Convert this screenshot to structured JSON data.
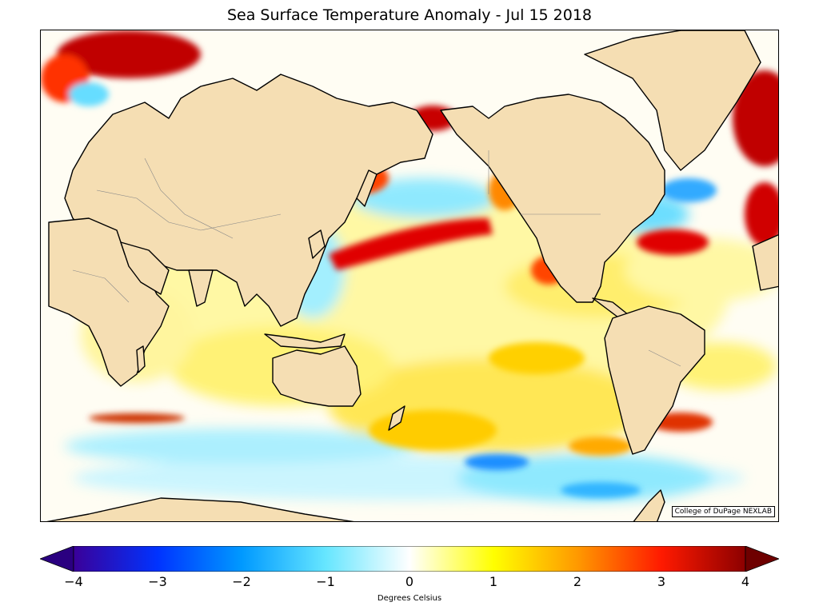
{
  "title": "Sea Surface Temperature Anomaly - Jul 15 2018",
  "credit": "College of DuPage NEXLAB",
  "colorbar": {
    "label": "Degrees Celsius",
    "min": -4,
    "max": 4,
    "extend": "both",
    "ticks": [
      "−4",
      "−3",
      "−2",
      "−1",
      "0",
      "1",
      "2",
      "3",
      "4"
    ],
    "colors": [
      "#3a0099",
      "#0033ff",
      "#0099ff",
      "#66e6ff",
      "#ffffff",
      "#ffff00",
      "#ff9900",
      "#ff1a00",
      "#8c0000"
    ]
  },
  "map_colors": {
    "land": "#f5deb3",
    "coast": "#000000",
    "border": "#888888"
  }
}
